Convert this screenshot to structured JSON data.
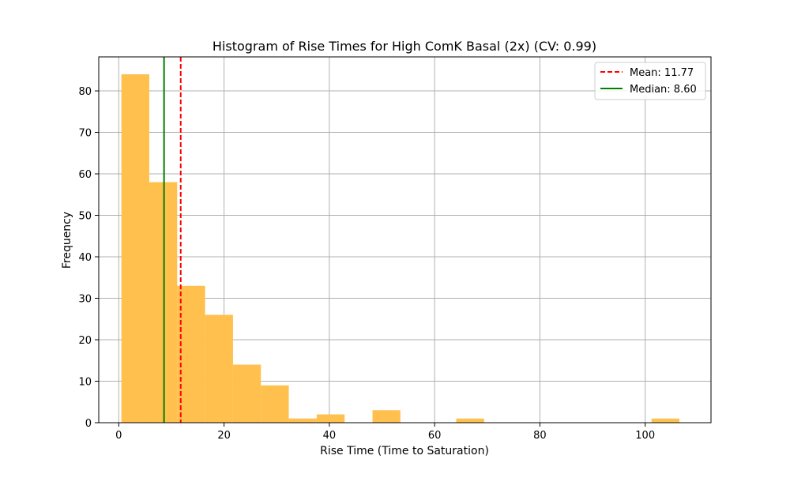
{
  "chart_data": {
    "type": "bar",
    "title": "Histogram of Rise Times for High ComK Basal (2x) (CV: 0.99)",
    "xlabel": "Rise Time (Time to Saturation)",
    "ylabel": "Frequency",
    "xlim": [
      -3.8,
      112.5
    ],
    "ylim": [
      0,
      88.2
    ],
    "xticks": [
      0,
      20,
      40,
      60,
      80,
      100
    ],
    "yticks": [
      0,
      10,
      20,
      30,
      40,
      50,
      60,
      70,
      80
    ],
    "grid": true,
    "legend_position": "top-right",
    "bar_color": "#ffc04d",
    "bins": [
      {
        "x0": 0.5,
        "x1": 5.8,
        "count": 84
      },
      {
        "x0": 5.8,
        "x1": 11.1,
        "count": 58
      },
      {
        "x0": 11.1,
        "x1": 16.4,
        "count": 33
      },
      {
        "x0": 16.4,
        "x1": 21.7,
        "count": 26
      },
      {
        "x0": 21.7,
        "x1": 27.0,
        "count": 14
      },
      {
        "x0": 27.0,
        "x1": 32.3,
        "count": 9
      },
      {
        "x0": 32.3,
        "x1": 37.6,
        "count": 1
      },
      {
        "x0": 37.6,
        "x1": 42.9,
        "count": 2
      },
      {
        "x0": 42.9,
        "x1": 48.2,
        "count": 0
      },
      {
        "x0": 48.2,
        "x1": 53.5,
        "count": 3
      },
      {
        "x0": 53.5,
        "x1": 58.8,
        "count": 0
      },
      {
        "x0": 58.8,
        "x1": 64.1,
        "count": 0
      },
      {
        "x0": 64.1,
        "x1": 69.4,
        "count": 1
      },
      {
        "x0": 69.4,
        "x1": 74.7,
        "count": 0
      },
      {
        "x0": 74.7,
        "x1": 80.0,
        "count": 0
      },
      {
        "x0": 80.0,
        "x1": 85.3,
        "count": 0
      },
      {
        "x0": 85.3,
        "x1": 90.6,
        "count": 0
      },
      {
        "x0": 90.6,
        "x1": 95.9,
        "count": 0
      },
      {
        "x0": 95.9,
        "x1": 101.2,
        "count": 0
      },
      {
        "x0": 101.2,
        "x1": 106.5,
        "count": 1
      }
    ],
    "reference_lines": [
      {
        "name": "mean",
        "label": "Mean: 11.77",
        "value": 11.77,
        "color": "#ff0000",
        "style": "dashed"
      },
      {
        "name": "median",
        "label": "Median: 8.60",
        "value": 8.6,
        "color": "#008000",
        "style": "solid"
      }
    ]
  }
}
